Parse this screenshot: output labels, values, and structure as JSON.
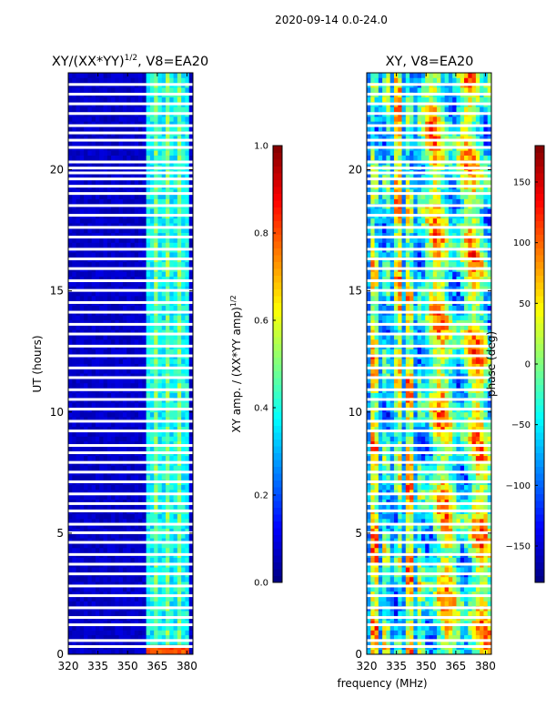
{
  "suptitle": "2020-09-14 0.0-24.0",
  "shared_xlabel": "frequency (MHz)",
  "palette": {
    "cold": "#00007f",
    "cool": "#00a0ff",
    "mid": "#7fff7f",
    "warm": "#ffcc00",
    "hot": "#7f0000"
  },
  "chart_data": [
    {
      "type": "heatmap",
      "title_main": "XY/(XX*YY)",
      "title_sup": "1/2",
      "title_tail": ", V8=EA20",
      "x_ticks": [
        "320",
        "335",
        "350",
        "365",
        "380"
      ],
      "x_tick_values": [
        320,
        335,
        350,
        365,
        380
      ],
      "xlim": [
        320,
        383
      ],
      "ylabel": "UT (hours)",
      "y_ticks": [
        "0",
        "5",
        "10",
        "15",
        "20"
      ],
      "y_tick_values": [
        0,
        5,
        10,
        15,
        20
      ],
      "ylim": [
        0,
        24
      ],
      "value_range": [
        0.0,
        1.0
      ],
      "description_of_pattern": "background near 0.05, bright channels 360-381 MHz around 0.3-0.5",
      "bright_band_mhz": [
        360,
        381
      ],
      "colorbar": {
        "label_main": "XY amp. / (XX*YY amp)",
        "label_sup": "1/2",
        "ticks": [
          "0.0",
          "0.2",
          "0.4",
          "0.6",
          "0.8",
          "1.0"
        ],
        "tick_values": [
          0.0,
          0.2,
          0.4,
          0.6,
          0.8,
          1.0
        ]
      }
    },
    {
      "type": "heatmap",
      "title": "XY, V8=EA20",
      "x_ticks": [
        "320",
        "335",
        "350",
        "365",
        "380"
      ],
      "x_tick_values": [
        320,
        335,
        350,
        365,
        380
      ],
      "xlim": [
        320,
        383
      ],
      "y_ticks": [
        "0",
        "5",
        "10",
        "15",
        "20"
      ],
      "y_tick_values": [
        0,
        5,
        10,
        15,
        20
      ],
      "ylim": [
        0,
        24
      ],
      "value_range": [
        -180,
        180
      ],
      "colorbar": {
        "label": "phase (deg)",
        "ticks": [
          "−150",
          "−100",
          "−50",
          "0",
          "50",
          "100",
          "150"
        ],
        "tick_values": [
          -150,
          -100,
          -50,
          0,
          50,
          100,
          150
        ]
      }
    }
  ],
  "flagged_hours": [
    0.3,
    0.55,
    1.2,
    1.5,
    1.9,
    2.4,
    2.8,
    3.3,
    3.7,
    4.1,
    4.6,
    5.0,
    5.35,
    5.9,
    6.2,
    6.6,
    7.1,
    7.5,
    7.9,
    8.3,
    8.6,
    9.2,
    9.6,
    10.1,
    10.5,
    10.9,
    11.4,
    11.8,
    12.3,
    12.7,
    13.2,
    13.6,
    14.1,
    14.5,
    15.0,
    15.4,
    15.9,
    16.3,
    16.7,
    17.2,
    17.6,
    18.1,
    18.5,
    19.0,
    19.3,
    19.6,
    19.85,
    20.05,
    20.3,
    20.9,
    21.2,
    21.5,
    21.8,
    22.3,
    22.7,
    23.1,
    23.5
  ]
}
